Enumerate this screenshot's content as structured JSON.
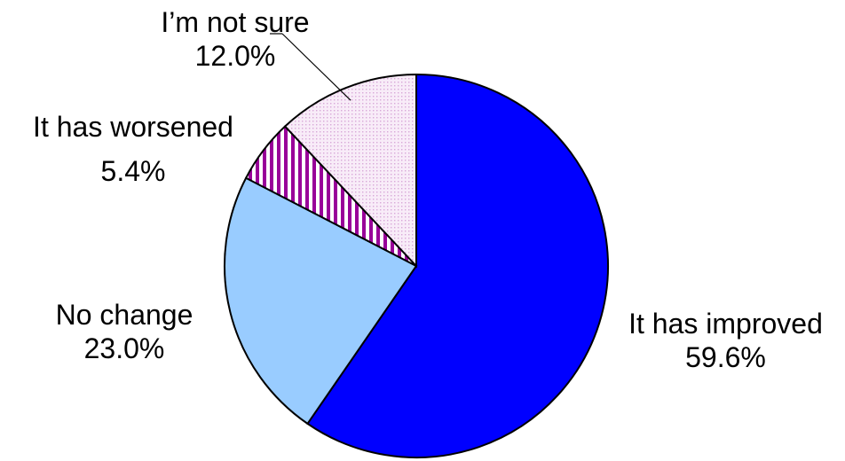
{
  "chart_data": {
    "type": "pie",
    "title": "",
    "start_angle_deg": 0,
    "direction": "clockwise",
    "slices": [
      {
        "label": "It has improved",
        "value": 59.6,
        "display": "59.6%",
        "color": "#0000ff",
        "pattern": "solid"
      },
      {
        "label": "No change",
        "value": 23.0,
        "display": "23.0%",
        "color": "#99ccff",
        "pattern": "solid"
      },
      {
        "label": "It has worsened",
        "value": 5.4,
        "display": "5.4%",
        "color": "#990099",
        "pattern": "vertical-stripes"
      },
      {
        "label": "I’m not sure",
        "value": 12.0,
        "display": "12.0%",
        "color": "#f2d9f2",
        "pattern": "dots"
      }
    ]
  }
}
